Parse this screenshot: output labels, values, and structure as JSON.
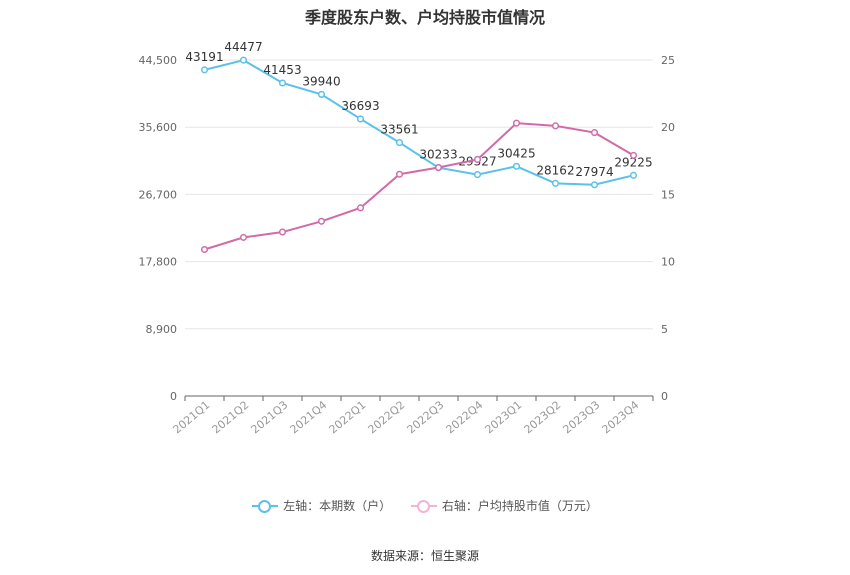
{
  "chart_data": {
    "type": "line",
    "title": "季度股东户数、户均持股市值情况",
    "categories": [
      "2021Q1",
      "2021Q2",
      "2021Q3",
      "2021Q4",
      "2022Q1",
      "2022Q2",
      "2022Q3",
      "2022Q4",
      "2023Q1",
      "2023Q2",
      "2023Q3",
      "2023Q4"
    ],
    "series": [
      {
        "name": "左轴：本期数（户）",
        "axis": "left",
        "color": "#5bc0eb",
        "values": [
          43191,
          44477,
          41453,
          39940,
          36693,
          33561,
          30233,
          29327,
          30425,
          28162,
          27974,
          29225
        ],
        "data_labels": [
          "43191",
          "44477",
          "41453",
          "39940",
          "36693",
          "33561",
          "30233",
          "29327",
          "30425",
          "28162",
          "27974",
          "29225"
        ]
      },
      {
        "name": "右轴：户均持股市值（万元）",
        "axis": "right",
        "color": "#d36aa8",
        "values": [
          10.9,
          11.8,
          12.2,
          13.0,
          14.0,
          16.5,
          17.0,
          17.6,
          20.3,
          20.1,
          19.6,
          17.9
        ]
      }
    ],
    "y_left": {
      "lim": [
        0,
        44500
      ],
      "ticks": [
        0,
        8900,
        17800,
        26700,
        35600,
        44500
      ],
      "tick_labels": [
        "0",
        "8,900",
        "17,800",
        "26,700",
        "35,600",
        "44,500"
      ]
    },
    "y_right": {
      "lim": [
        0,
        25
      ],
      "ticks": [
        0,
        5,
        10,
        15,
        20,
        25
      ],
      "tick_labels": [
        "0",
        "5",
        "10",
        "15",
        "20",
        "25"
      ]
    },
    "grid": true,
    "legend_position": "bottom"
  },
  "source_text": "数据来源：恒生聚源"
}
